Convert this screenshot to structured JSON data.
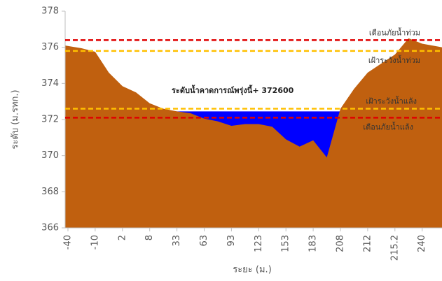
{
  "chart_data": {
    "type": "area",
    "y_label": "ระดับ (ม.รทก.)",
    "x_label": "ระยะ (ม.)",
    "annotation": "ระดับน้ำคาดการณ์พรุ่งนี้+ 372600",
    "categories": [
      "-40",
      null,
      "-10",
      null,
      "2",
      null,
      "8",
      null,
      "33",
      null,
      "63",
      null,
      "93",
      null,
      "123",
      null,
      "153",
      null,
      "183",
      null,
      "208",
      null,
      "212",
      null,
      "215.2",
      null,
      "240",
      null
    ],
    "series": [
      {
        "name": "water",
        "color": "#0000ff",
        "values": [
          null,
          null,
          null,
          null,
          null,
          null,
          null,
          372.45,
          372.45,
          372.45,
          372.45,
          372.45,
          372.45,
          372.45,
          372.45,
          372.45,
          372.45,
          372.45,
          372.45,
          372.45,
          372.45,
          null,
          null,
          null,
          null,
          null,
          null,
          null
        ]
      },
      {
        "name": "ground",
        "color": "#c0600f",
        "values": [
          376.1,
          375.95,
          375.75,
          374.6,
          373.85,
          373.5,
          372.9,
          372.6,
          372.45,
          372.35,
          372.05,
          371.9,
          371.65,
          371.75,
          371.75,
          371.6,
          370.9,
          370.5,
          370.85,
          369.9,
          372.6,
          373.7,
          374.6,
          375.1,
          375.6,
          376.5,
          376.2,
          376.0
        ]
      }
    ],
    "reference_lines": [
      {
        "label": "เตือนภัยน้ำท่วม",
        "value": 376.4,
        "color": "#e00000"
      },
      {
        "label": "เฝ้าระวังน้ำท่วม",
        "value": 375.8,
        "color": "#ffc000"
      },
      {
        "label": "เฝ้าระวังน้ำแล้ง",
        "value": 372.6,
        "color": "#ffc000"
      },
      {
        "label": "เตือนภัยน้ำแล้ง",
        "value": 372.1,
        "color": "#e00000"
      }
    ],
    "ylim": [
      366,
      378
    ],
    "yticks": [
      366,
      368,
      370,
      372,
      374,
      376,
      378
    ]
  }
}
